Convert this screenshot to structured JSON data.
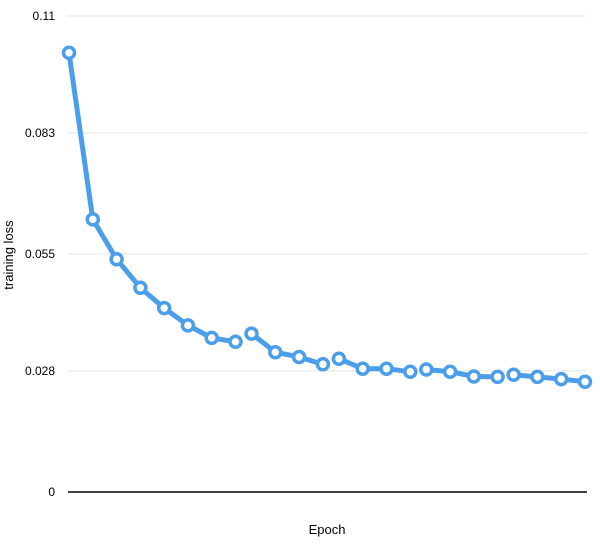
{
  "colors": {
    "series": "#4a9eea",
    "grid": "#e4e4e4",
    "axis": "#000000",
    "marker_fill": "#ffffff"
  },
  "chart_data": {
    "type": "line",
    "xlabel": "Epoch",
    "ylabel": "training loss",
    "ylim": [
      0,
      0.11
    ],
    "yticks": [
      0,
      0.028,
      0.055,
      0.083,
      0.11
    ],
    "ytick_labels": [
      "0",
      "0.028",
      "0.055",
      "0.083",
      "0.11"
    ],
    "grid": "horizontal",
    "x_ticks_shown": false,
    "series": [
      {
        "segments": [
          [
            0.1015,
            0.063,
            0.0538,
            0.0472,
            0.0425,
            0.0385,
            0.0356,
            0.0347
          ],
          [
            0.0366,
            0.0323,
            0.0312,
            0.0295
          ],
          [
            0.0308,
            0.0285,
            0.0285,
            0.0278
          ],
          [
            0.0283,
            0.0278,
            0.0267,
            0.0266
          ],
          [
            0.0271,
            0.0266,
            0.0261,
            0.0255
          ]
        ]
      }
    ]
  }
}
